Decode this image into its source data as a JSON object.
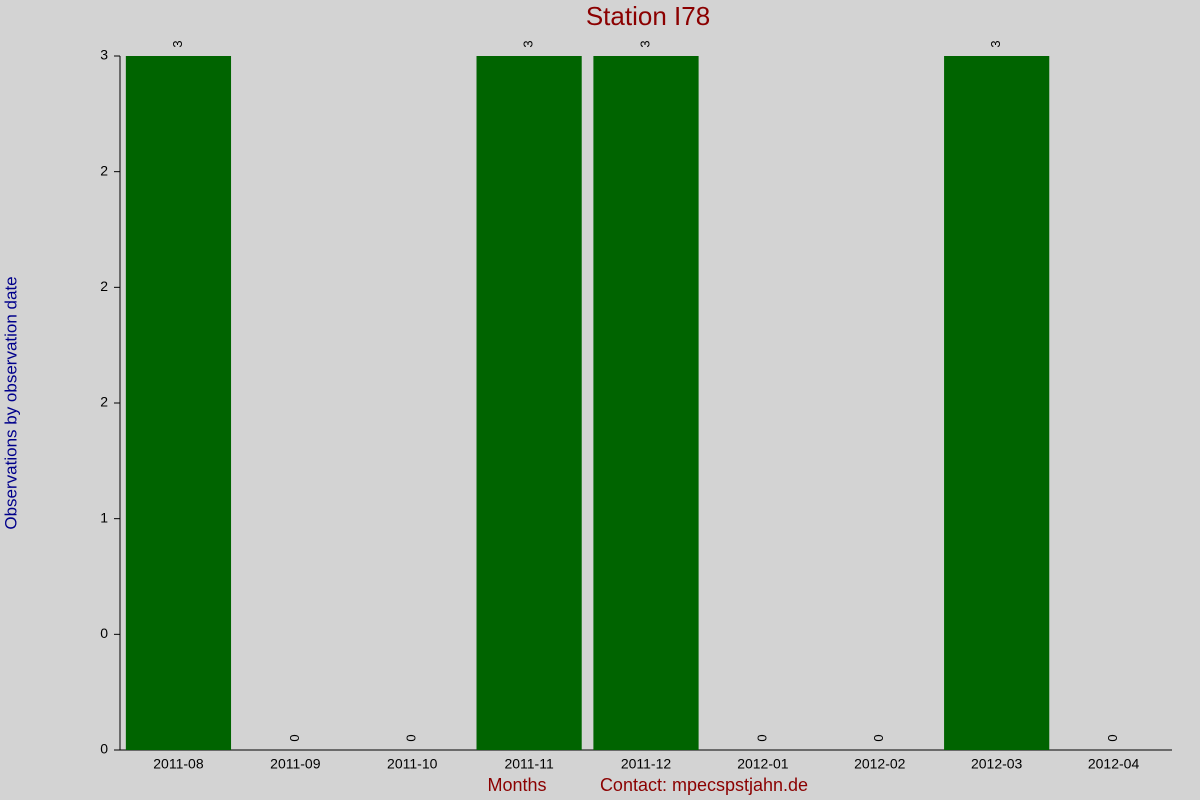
{
  "chart_data": {
    "type": "bar",
    "title": "Station I78",
    "x_label": "Months",
    "contact": "Contact: mpecspstjahn.de",
    "y_label": "Observations by observation date",
    "categories": [
      "2011-08",
      "2011-09",
      "2011-10",
      "2011-11",
      "2011-12",
      "2012-01",
      "2012-02",
      "2012-03",
      "2012-04"
    ],
    "values": [
      3,
      0,
      0,
      3,
      3,
      0,
      0,
      3,
      0
    ],
    "color": "#006400",
    "ylim": [
      0,
      3
    ],
    "yticks": [
      0,
      {
        "value": 0.5,
        "label": "0"
      },
      1,
      {
        "value": 1.5,
        "label": "2"
      },
      2,
      {
        "value": 2.5,
        "label": "2"
      },
      3
    ]
  }
}
